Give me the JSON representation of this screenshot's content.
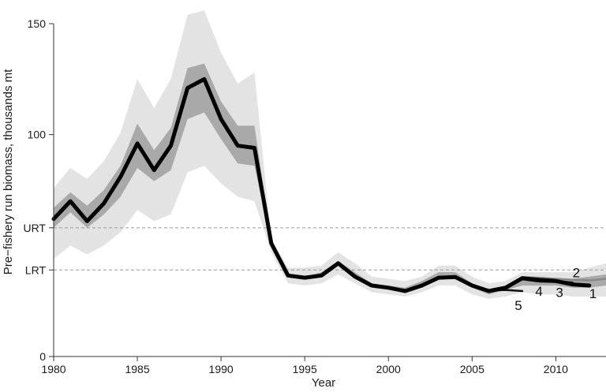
{
  "chart_data": {
    "type": "line",
    "title": "",
    "xlabel": "Year",
    "ylabel": "Pre−fishery run biomass,  thousands mt",
    "xlim": [
      1980,
      2013
    ],
    "ylim": [
      0,
      150
    ],
    "x_ticks": [
      1980,
      1985,
      1990,
      1995,
      2000,
      2005,
      2010
    ],
    "y_ticks": [
      {
        "value": 0,
        "label": "0"
      },
      {
        "value": 39,
        "label": "LRT"
      },
      {
        "value": 58,
        "label": "URT"
      },
      {
        "value": 100,
        "label": "100"
      },
      {
        "value": 150,
        "label": "150"
      }
    ],
    "reference_lines": [
      {
        "name": "URT",
        "value": 58,
        "style": "dashed"
      },
      {
        "name": "LRT",
        "value": 39,
        "style": "dashed"
      }
    ],
    "grid": false,
    "colors": {
      "outer_band": "#e3e3e3",
      "inner_band": "#a9a9a9",
      "main_line": "#000000",
      "retro_line": "#111111",
      "newest_line": "#888888",
      "reference": "#999999",
      "axis": "#333333"
    },
    "bands": {
      "years": [
        1980,
        1981,
        1982,
        1983,
        1984,
        1985,
        1986,
        1987,
        1988,
        1989,
        1990,
        1991,
        1992,
        1993,
        1994,
        1995,
        1996,
        1997,
        1998,
        1999,
        2000,
        2001,
        2002,
        2003,
        2004,
        2005,
        2006,
        2007,
        2008,
        2009,
        2010,
        2011,
        2012,
        2013
      ],
      "outer_low": [
        44,
        50,
        46,
        50,
        56,
        66,
        61,
        64,
        83,
        86,
        78,
        72,
        70,
        47,
        33,
        32,
        33,
        37,
        33,
        29,
        28,
        27,
        29,
        32,
        32,
        28,
        26,
        27,
        29,
        28,
        28,
        27,
        27,
        27
      ],
      "outer_high": [
        76,
        85,
        80,
        88,
        101,
        125,
        112,
        125,
        154,
        156,
        137,
        123,
        128,
        53,
        40,
        40,
        41,
        47,
        42,
        36,
        35,
        34,
        36,
        41,
        41,
        36,
        33,
        34,
        38,
        38,
        38,
        38,
        40,
        42
      ],
      "inner_low": [
        58,
        65,
        58,
        64,
        72,
        85,
        79,
        84,
        107,
        110,
        98,
        87,
        86,
        50,
        36,
        35,
        36,
        41,
        37,
        32,
        31,
        30,
        32,
        35,
        35,
        31,
        28,
        30,
        32,
        32,
        32,
        31,
        31,
        32
      ],
      "inner_high": [
        67,
        74,
        68,
        75,
        86,
        105,
        93,
        103,
        130,
        132,
        115,
        104,
        104,
        52,
        37,
        36,
        38,
        43,
        38,
        33,
        32,
        31,
        34,
        38,
        38,
        33,
        30,
        32,
        35,
        35,
        34,
        35,
        36,
        37
      ]
    },
    "series": [
      {
        "label": "1",
        "x": [
          1980,
          1981,
          1982,
          1983,
          1984,
          1985,
          1986,
          1987,
          1988,
          1989,
          1990,
          1991,
          1992,
          1993,
          1994,
          1995,
          1996,
          1997,
          1998,
          1999,
          2000,
          2001,
          2002,
          2003,
          2004,
          2005,
          2006,
          2007,
          2008,
          2009,
          2010,
          2011,
          2012
        ],
        "y": [
          62,
          70,
          61,
          69,
          81,
          96,
          84,
          95,
          121,
          125,
          107,
          95,
          94,
          51,
          36.5,
          35.5,
          36.5,
          42,
          36,
          32,
          31,
          29.5,
          32,
          35.5,
          35.8,
          32,
          29.5,
          31,
          35.3,
          34.5,
          34,
          32.5,
          32
        ]
      },
      {
        "label": "2",
        "x": [
          2007,
          2008,
          2009,
          2010,
          2011,
          2012,
          2013
        ],
        "y": [
          31.5,
          35.8,
          35.5,
          35,
          34.6,
          34.3,
          35
        ]
      },
      {
        "label": "3",
        "x": [
          2007,
          2008,
          2009,
          2010,
          2011
        ],
        "y": [
          31,
          35.3,
          34.5,
          34,
          33.3
        ]
      },
      {
        "label": "4",
        "x": [
          2006,
          2007,
          2008,
          2009,
          2010
        ],
        "y": [
          29.5,
          31,
          34.8,
          33.8,
          33.6
        ]
      },
      {
        "label": "5",
        "x": [
          2005,
          2006,
          2007,
          2008
        ],
        "y": [
          31.7,
          29.8,
          30,
          29.5
        ]
      }
    ]
  }
}
